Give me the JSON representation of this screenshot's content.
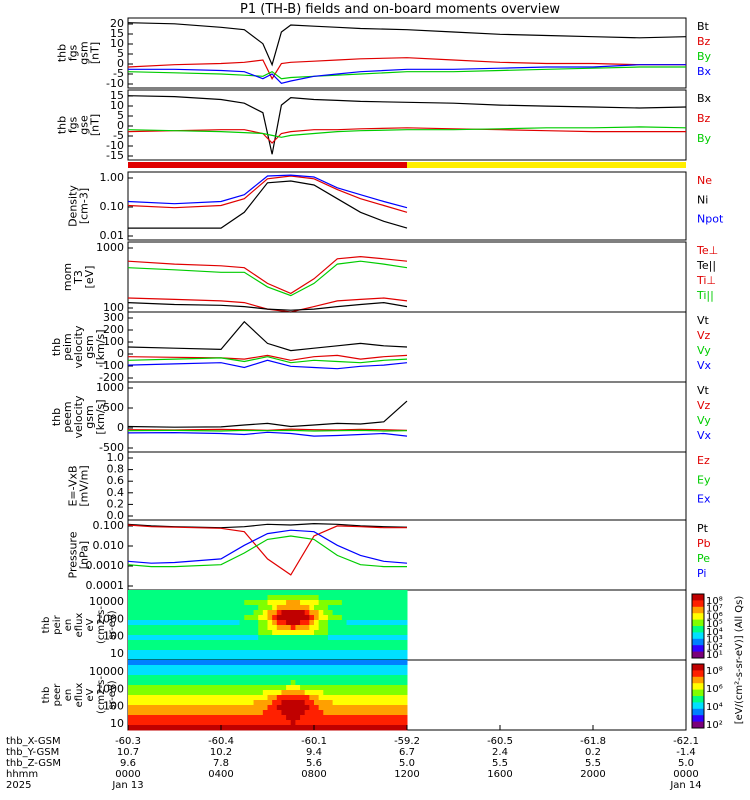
{
  "title": "P1 (TH-B) fields and on-board moments overview",
  "colors": {
    "black": "#000000",
    "red": "#e00000",
    "green": "#00cc00",
    "blue": "#0000ff",
    "yellow": "#ffee00",
    "axis": "#000000"
  },
  "time_axis": {
    "tick_times": [
      "0000",
      "0400",
      "0800",
      "1200",
      "1600",
      "2000",
      "0000"
    ],
    "row_labels": [
      "thb_X-GSM",
      "thb_Y-GSM",
      "thb_Z-GSM",
      "hhmm",
      "2025"
    ],
    "rows": [
      [
        "-60.3",
        "-60.4",
        "-60.1",
        "-59.2",
        "-60.5",
        "-61.8",
        "-62.1"
      ],
      [
        "10.7",
        "10.2",
        "9.4",
        "6.7",
        "2.4",
        "0.2",
        "-1.4"
      ],
      [
        "9.6",
        "7.8",
        "5.6",
        "5.0",
        "5.5",
        "5.5",
        "5.0"
      ],
      [
        "0000",
        "0400",
        "0800",
        "1200",
        "1600",
        "2000",
        "0000"
      ],
      [
        "Jan 13",
        "",
        "",
        "",
        "",
        "",
        "Jan 14"
      ]
    ]
  },
  "chart_data": [
    {
      "type": "line",
      "id": "fgs_gsm",
      "ylabel": [
        "thb",
        "fgs",
        "gsm",
        "[nT]"
      ],
      "ylim": [
        -10,
        20
      ],
      "yticks": [
        "20",
        "15",
        "10",
        "5",
        "0",
        "-5",
        "-10"
      ],
      "log": false,
      "series": [
        {
          "name": "Bt",
          "color": "black"
        },
        {
          "name": "Bz",
          "color": "red"
        },
        {
          "name": "By",
          "color": "green"
        },
        {
          "name": "Bx",
          "color": "blue"
        }
      ],
      "x": [
        0,
        2,
        4,
        5,
        5.8,
        6.2,
        6.6,
        7,
        8,
        9,
        10,
        12,
        14,
        16,
        18,
        20,
        22,
        24
      ],
      "values": {
        "Bt": [
          18,
          17.5,
          16,
          15,
          9,
          0,
          14,
          17,
          16.5,
          16,
          15.5,
          15,
          14,
          13,
          12.5,
          12,
          11.5,
          12
        ],
        "Bz": [
          -1,
          0,
          0.5,
          1,
          2,
          -6,
          0.5,
          1,
          1.5,
          2,
          2.5,
          3,
          2,
          1,
          0.5,
          0.5,
          0,
          0
        ],
        "By": [
          -3,
          -3.5,
          -4,
          -4.5,
          -5,
          -3,
          -6,
          -5.5,
          -5,
          -4.5,
          -4,
          -3,
          -3,
          -2.5,
          -2,
          -1.5,
          -1,
          -1
        ],
        "Bx": [
          -2,
          -2,
          -2.5,
          -3,
          -6,
          -4,
          -8,
          -7,
          -5,
          -4,
          -3,
          -2,
          -2,
          -1.5,
          -1,
          -1,
          0,
          0
        ]
      }
    },
    {
      "type": "line",
      "id": "fgs_gse",
      "ylabel": [
        "thb",
        "fgs",
        "gse",
        "[nT]"
      ],
      "ylim": [
        -17,
        20
      ],
      "yticks": [
        "15",
        "10",
        "5",
        "0",
        "-5",
        "-10",
        "-15"
      ],
      "log": false,
      "series": [
        {
          "name": "Bx",
          "color": "black"
        },
        {
          "name": "Bz",
          "color": "red"
        },
        {
          "name": "By",
          "color": "green"
        }
      ],
      "x": [
        0,
        2,
        4,
        5,
        5.8,
        6.2,
        6.6,
        7,
        8,
        9,
        10,
        12,
        14,
        16,
        18,
        20,
        22,
        24
      ],
      "values": {
        "Bx": [
          17,
          16.5,
          15,
          13,
          8,
          -14,
          12,
          16,
          15,
          14.5,
          14,
          13.5,
          13,
          12,
          11.5,
          11,
          10.5,
          11
        ],
        "Bz": [
          -2,
          -1.5,
          -1,
          -1,
          -3,
          -8,
          -3,
          -2,
          -1,
          -1,
          -0.5,
          0,
          -0.5,
          -1,
          -1.5,
          -2,
          -2,
          -2
        ],
        "By": [
          -1,
          -1.5,
          -2,
          -2.5,
          -3,
          -4,
          -5,
          -4,
          -3,
          -2,
          -1.5,
          -1,
          -1,
          -0.5,
          0,
          0,
          0.5,
          0
        ]
      }
    },
    {
      "type": "line",
      "id": "density",
      "ylabel": [
        "Density",
        "[cm-3]"
      ],
      "ylim": [
        0.003,
        3
      ],
      "yticks": [
        "1.00",
        "0.10",
        "0.01"
      ],
      "log": true,
      "series": [
        {
          "name": "Ne",
          "color": "red"
        },
        {
          "name": "Ni",
          "color": "black"
        },
        {
          "name": "Npot",
          "color": "blue"
        }
      ],
      "x": [
        0,
        2,
        4,
        5,
        6,
        7,
        8,
        9,
        10,
        11,
        12
      ],
      "values": {
        "Ne": [
          0.1,
          0.08,
          0.1,
          0.2,
          1.5,
          2,
          1.5,
          0.5,
          0.2,
          0.1,
          0.05
        ],
        "Ni": [
          0.01,
          0.01,
          0.01,
          0.05,
          1,
          1.2,
          0.8,
          0.2,
          0.05,
          0.02,
          0.01
        ],
        "Npot": [
          0.15,
          0.12,
          0.15,
          0.3,
          2,
          2.2,
          1.8,
          0.6,
          0.3,
          0.15,
          0.08
        ]
      }
    },
    {
      "type": "line",
      "id": "moms_temp",
      "ylabel": [
        "mom",
        "T3",
        "[eV]"
      ],
      "ylim": [
        25,
        2000
      ],
      "yticks": [
        "1000",
        "100"
      ],
      "log": true,
      "series": [
        {
          "name": "Te⊥",
          "color": "red"
        },
        {
          "name": "Te||",
          "color": "black"
        },
        {
          "name": "Ti⊥",
          "color": "red"
        },
        {
          "name": "Ti||",
          "color": "green"
        }
      ],
      "x": [
        0,
        2,
        4,
        5,
        6,
        7,
        8,
        9,
        10,
        11,
        12
      ],
      "values": {
        "Te⊥": [
          60,
          55,
          50,
          45,
          30,
          25,
          35,
          50,
          55,
          60,
          50
        ],
        "Te||": [
          45,
          40,
          38,
          35,
          30,
          28,
          30,
          35,
          40,
          45,
          35
        ],
        "Ti⊥": [
          600,
          500,
          450,
          400,
          150,
          80,
          200,
          700,
          800,
          700,
          600
        ],
        "Ti||": [
          400,
          350,
          300,
          300,
          120,
          70,
          150,
          500,
          600,
          500,
          400
        ]
      }
    },
    {
      "type": "line",
      "id": "peim_velocity",
      "ylabel": [
        "thb",
        "peim",
        "velocity",
        "gsm",
        "[km/s]"
      ],
      "ylim": [
        -200,
        380
      ],
      "yticks": [
        "300",
        "200",
        "100",
        "0",
        "-100",
        "-200"
      ],
      "log": false,
      "series": [
        {
          "name": "Vt",
          "color": "black"
        },
        {
          "name": "Vz",
          "color": "red"
        },
        {
          "name": "Vy",
          "color": "green"
        },
        {
          "name": "Vx",
          "color": "blue"
        }
      ],
      "x": [
        0,
        2,
        4,
        5,
        6,
        7,
        8,
        9,
        10,
        11,
        12
      ],
      "values": {
        "Vt": [
          90,
          80,
          70,
          300,
          120,
          60,
          80,
          100,
          120,
          100,
          90
        ],
        "Vz": [
          10,
          5,
          0,
          -10,
          20,
          -20,
          10,
          20,
          -10,
          10,
          20
        ],
        "Vy": [
          -20,
          -10,
          0,
          -30,
          10,
          -40,
          -20,
          -30,
          -40,
          -20,
          -10
        ],
        "Vx": [
          -60,
          -50,
          -40,
          -80,
          -20,
          -70,
          -80,
          -90,
          -70,
          -60,
          -40
        ]
      }
    },
    {
      "type": "line",
      "id": "peem_velocity",
      "ylabel": [
        "thb",
        "peem",
        "velocity",
        "gsm",
        "[km/s]"
      ],
      "ylim": [
        -700,
        1500
      ],
      "yticks": [
        "1000",
        "500",
        "0",
        "-500"
      ],
      "log": false,
      "series": [
        {
          "name": "Vt",
          "color": "black"
        },
        {
          "name": "Vz",
          "color": "red"
        },
        {
          "name": "Vy",
          "color": "green"
        },
        {
          "name": "Vx",
          "color": "blue"
        }
      ],
      "x": [
        0,
        2,
        4,
        5,
        6,
        7,
        8,
        9,
        10,
        11,
        12
      ],
      "values": {
        "Vt": [
          100,
          80,
          90,
          150,
          200,
          100,
          150,
          200,
          180,
          250,
          900
        ],
        "Vz": [
          0,
          -10,
          10,
          0,
          -20,
          20,
          0,
          -10,
          10,
          0,
          -20
        ],
        "Vy": [
          -30,
          -20,
          -40,
          -20,
          -30,
          -20,
          -40,
          -30,
          -20,
          -40,
          -30
        ],
        "Vx": [
          -100,
          -90,
          -120,
          -150,
          -80,
          -120,
          -200,
          -180,
          -150,
          -120,
          -200
        ]
      }
    },
    {
      "type": "line",
      "id": "e_field",
      "ylabel": [
        "E=-VxB",
        "[mV/m]"
      ],
      "ylim": [
        0,
        1
      ],
      "yticks": [
        "1.0",
        "0.8",
        "0.6",
        "0.4",
        "0.2",
        "0.0"
      ],
      "log": false,
      "series": [
        {
          "name": "Ez",
          "color": "red"
        },
        {
          "name": "Ey",
          "color": "green"
        },
        {
          "name": "Ex",
          "color": "blue"
        }
      ],
      "x": [],
      "values": {
        "Ez": [],
        "Ey": [],
        "Ex": []
      }
    },
    {
      "type": "line",
      "id": "pressure",
      "ylabel": [
        "Pressure",
        "[nPa]"
      ],
      "ylim": [
        5e-05,
        0.2
      ],
      "yticks": [
        "0.100",
        "0.010",
        "0.0010",
        "0.0001"
      ],
      "log": true,
      "series": [
        {
          "name": "Pt",
          "color": "black"
        },
        {
          "name": "Pb",
          "color": "red"
        },
        {
          "name": "Pe",
          "color": "green"
        },
        {
          "name": "Pi",
          "color": "blue"
        }
      ],
      "x": [
        0,
        1,
        2,
        4,
        5,
        6,
        7,
        8,
        9,
        10,
        11,
        12
      ],
      "values": {
        "Pt": [
          0.12,
          0.1,
          0.09,
          0.08,
          0.09,
          0.12,
          0.11,
          0.13,
          0.12,
          0.1,
          0.09,
          0.085
        ],
        "Pb": [
          0.11,
          0.09,
          0.085,
          0.075,
          0.05,
          0.002,
          0.0003,
          0.03,
          0.1,
          0.09,
          0.08,
          0.08
        ],
        "Pe": [
          0.001,
          0.0008,
          0.0008,
          0.001,
          0.004,
          0.02,
          0.03,
          0.02,
          0.003,
          0.001,
          0.0008,
          0.0008
        ],
        "Pi": [
          0.0015,
          0.0012,
          0.0013,
          0.002,
          0.01,
          0.04,
          0.06,
          0.05,
          0.01,
          0.003,
          0.0015,
          0.0012
        ]
      }
    }
  ],
  "spectrograms": [
    {
      "id": "peir",
      "ylabel": [
        "thb",
        "peir",
        "en",
        "eflux",
        "eV",
        "(cm2-s-",
        "sr-eV)"
      ],
      "yticks": [
        "10000",
        "1000",
        "100",
        "10"
      ]
    },
    {
      "id": "peer",
      "ylabel": [
        "thb",
        "peer",
        "en",
        "eflux",
        "eV",
        "(cm2-s-",
        "sr-eV)"
      ],
      "yticks": [
        "10000",
        "1000",
        "100",
        "10"
      ]
    }
  ],
  "colorbar_top": {
    "ticks": [
      "10⁸",
      "10⁷",
      "10⁶",
      "10⁵",
      "10⁴",
      "10³",
      "10²",
      "10¹"
    ]
  },
  "colorbar_bottom": {
    "ticks": [
      "10⁸",
      "10⁶",
      "10⁴",
      "10²"
    ],
    "label": "[eV/(cm²-s-sr-eV)] (All Qs)"
  },
  "mode_bar": {
    "segments": [
      {
        "from": 0,
        "to": 12,
        "color": "red"
      },
      {
        "from": 12,
        "to": 24,
        "color": "yellow"
      }
    ]
  }
}
